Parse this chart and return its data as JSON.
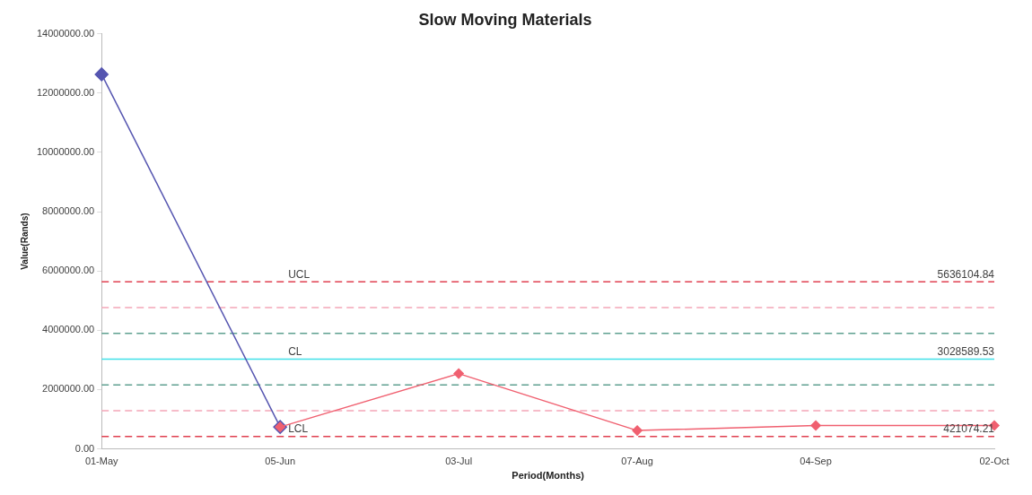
{
  "chart_data": {
    "type": "line",
    "title": "Slow Moving Materials",
    "xlabel": "Period(Months)",
    "ylabel": "Value(Rands)",
    "categories": [
      "01-May",
      "05-Jun",
      "03-Jul",
      "07-Aug",
      "04-Sep",
      "02-Oct"
    ],
    "series": [
      {
        "color": "#5555b0",
        "values": [
          12630000,
          740000,
          null,
          null,
          null,
          null
        ]
      },
      {
        "color": "#f06070",
        "values": [
          null,
          740000,
          2540000,
          620000,
          790000,
          790000
        ]
      }
    ],
    "ylim": [
      0,
      14000000
    ],
    "yticks": [
      {
        "value": 0,
        "label": "0.00"
      },
      {
        "value": 2000000,
        "label": "2000000.00"
      },
      {
        "value": 4000000,
        "label": "4000000.00"
      },
      {
        "value": 6000000,
        "label": "6000000.00"
      },
      {
        "value": 8000000,
        "label": "8000000.00"
      },
      {
        "value": 10000000,
        "label": "10000000.00"
      },
      {
        "value": 12000000,
        "label": "12000000.00"
      },
      {
        "value": 14000000,
        "label": "14000000.00"
      }
    ],
    "ref_lines": [
      {
        "axis": "y",
        "value": 5636104.84,
        "label": "UCL",
        "color": "#e04050",
        "line_style": "dashed"
      },
      {
        "axis": "y",
        "value": 4766933.07,
        "color": "#f4a6b8",
        "line_style": "dashed"
      },
      {
        "axis": "y",
        "value": 3897761.3,
        "color": "#5fa090",
        "line_style": "dashed"
      },
      {
        "axis": "y",
        "value": 3028589.53,
        "label": "CL",
        "color": "#40e0e8",
        "line_style": "solid"
      },
      {
        "axis": "y",
        "value": 2159417.76,
        "color": "#5fa090",
        "line_style": "dashed"
      },
      {
        "axis": "y",
        "value": 1290246.0,
        "color": "#f4a6b8",
        "line_style": "dashed"
      },
      {
        "axis": "y",
        "value": 421074.21,
        "label": "LCL",
        "color": "#e04050",
        "line_style": "dashed"
      }
    ],
    "annotations": [
      {
        "text": "5636104.84",
        "x": "02-Oct",
        "y": 5636104.84
      },
      {
        "text": "3028589.53",
        "x": "02-Oct",
        "y": 3028589.53
      },
      {
        "text": "421074.21",
        "x": "02-Oct",
        "y": 421074.21
      }
    ],
    "marker": "diamond",
    "line_style": "solid",
    "grid": false,
    "legend": false
  }
}
